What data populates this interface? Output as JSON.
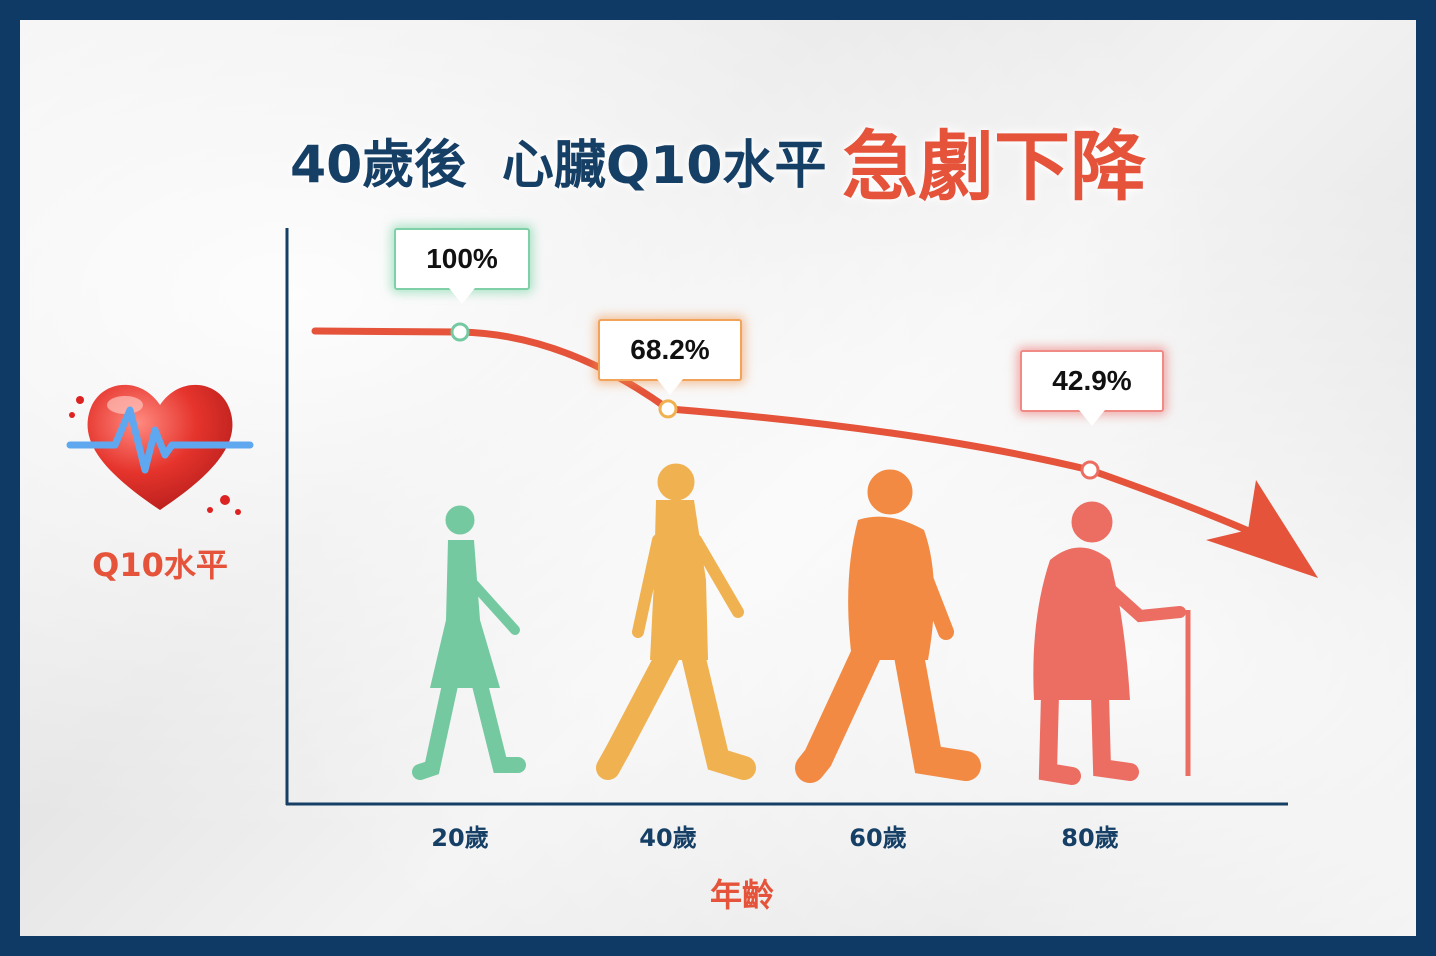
{
  "title": {
    "part1": "40歲後",
    "part2": "心臟Q10水平",
    "part3": "急劇下降"
  },
  "chart_data": {
    "type": "line",
    "title": "40歲後 心臟Q10水平急劇下降",
    "xlabel": "年齡",
    "ylabel": "Q10水平",
    "categories": [
      "20歲",
      "40歲",
      "60歲",
      "80歲"
    ],
    "series": [
      {
        "values": [
          100,
          68.2,
          null,
          42.9
        ]
      }
    ],
    "data_labels": [
      "100%",
      "68.2%",
      "",
      "42.9%"
    ],
    "grid": false,
    "colors": {
      "curve": "#e4533a",
      "axis": "#163f66",
      "age20": "#74c9a1",
      "age40": "#f0b150",
      "age60": "#f28a43",
      "age80": "#ec6e63"
    }
  }
}
